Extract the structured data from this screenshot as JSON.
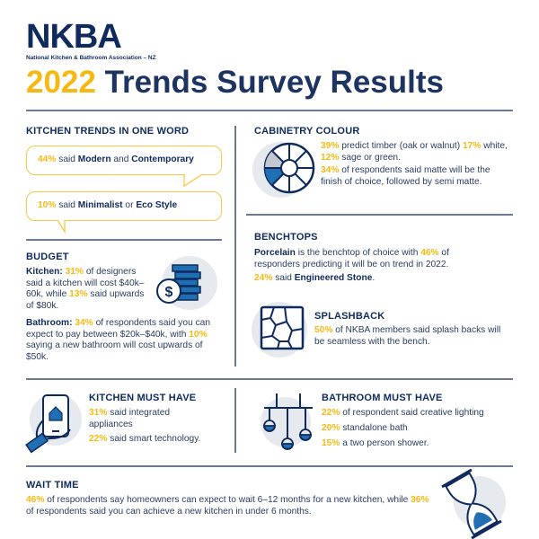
{
  "logo": {
    "text": "NKBA",
    "subtitle": "National Kitchen & Bathroom Association – NZ"
  },
  "title": {
    "year": "2022",
    "rest": " Trends Survey Results"
  },
  "colors": {
    "navy": "#0f2a5c",
    "yellow": "#f5b913",
    "blue": "#1f6fb2"
  },
  "sections": {
    "kitchen_trends": {
      "heading": "KITCHEN TRENDS IN ONE WORD",
      "bubble1": [
        {
          "t": "44%",
          "s": "hl"
        },
        {
          "t": " said "
        },
        {
          "t": "Modern",
          "s": "b"
        },
        {
          "t": " and "
        },
        {
          "t": "Contemporary",
          "s": "b"
        }
      ],
      "bubble2": [
        {
          "t": "10%",
          "s": "hl"
        },
        {
          "t": " said "
        },
        {
          "t": "Minimalist",
          "s": "b"
        },
        {
          "t": " or "
        },
        {
          "t": "Eco Style",
          "s": "b"
        }
      ]
    },
    "cabinetry": {
      "heading": "CABINETRY COLOUR",
      "p1": [
        {
          "t": "39%",
          "s": "hl"
        },
        {
          "t": " predict timber (oak or walnut) "
        },
        {
          "t": "17%",
          "s": "hl"
        },
        {
          "t": " white, "
        },
        {
          "t": "12%",
          "s": "hl"
        },
        {
          "t": " sage or green."
        }
      ],
      "p2": [
        {
          "t": "34%",
          "s": "hl"
        },
        {
          "t": " of respondents said matte will be the finish of choice, followed by semi matte."
        }
      ]
    },
    "budget": {
      "heading": "BUDGET",
      "p1": [
        {
          "t": "Kitchen:",
          "s": "b"
        },
        {
          "t": " "
        },
        {
          "t": "31%",
          "s": "hl"
        },
        {
          "t": " of designers said a kitchen will cost $40k–60k, while "
        },
        {
          "t": "13%",
          "s": "hl"
        },
        {
          "t": " said upwards of $80k."
        }
      ],
      "p2": [
        {
          "t": "Bathroom:",
          "s": "b"
        },
        {
          "t": " "
        },
        {
          "t": "34%",
          "s": "hl"
        },
        {
          "t": " of respondents said you can expect to pay between $20k–$40k, with "
        },
        {
          "t": "10%",
          "s": "hl"
        },
        {
          "t": " saying a new bathroom will cost upwards of $50k."
        }
      ]
    },
    "benchtops": {
      "heading": "BENCHTOPS",
      "p1": [
        {
          "t": "Porcelain",
          "s": "b"
        },
        {
          "t": " is the benchtop of choice with "
        },
        {
          "t": "46%",
          "s": "hl"
        },
        {
          "t": " of responders predicting it will be on trend in 2022."
        }
      ],
      "p2": [
        {
          "t": "24%",
          "s": "hl"
        },
        {
          "t": " said "
        },
        {
          "t": "Engineered Stone",
          "s": "b"
        },
        {
          "t": "."
        }
      ]
    },
    "splashback": {
      "heading": "SPLASHBACK",
      "p1": [
        {
          "t": "50%",
          "s": "hl"
        },
        {
          "t": " of NKBA members said splash backs will be seamless with the bench."
        }
      ]
    },
    "kitchen_must": {
      "heading": "KITCHEN MUST HAVE",
      "p1": [
        {
          "t": "31%",
          "s": "hl"
        },
        {
          "t": " said integrated appliances"
        }
      ],
      "p2": [
        {
          "t": "22%",
          "s": "hl"
        },
        {
          "t": " said smart technology."
        }
      ]
    },
    "bathroom_must": {
      "heading": "BATHROOM MUST HAVE",
      "p1": [
        {
          "t": "22%",
          "s": "hl"
        },
        {
          "t": " of respondent said creative lighting"
        }
      ],
      "p2": [
        {
          "t": "20%",
          "s": "hl"
        },
        {
          "t": " standalone bath"
        }
      ],
      "p3": [
        {
          "t": "15%",
          "s": "hl"
        },
        {
          "t": " a two person shower."
        }
      ]
    },
    "wait_time": {
      "heading": "WAIT TIME",
      "p1": [
        {
          "t": "46%",
          "s": "hl"
        },
        {
          "t": " of respondents say homeowners can expect to wait 6–12 months for a new kitchen, while "
        },
        {
          "t": "36%",
          "s": "hl"
        },
        {
          "t": " of respondents said you can achieve a new kitchen in under 6 months."
        }
      ]
    }
  }
}
